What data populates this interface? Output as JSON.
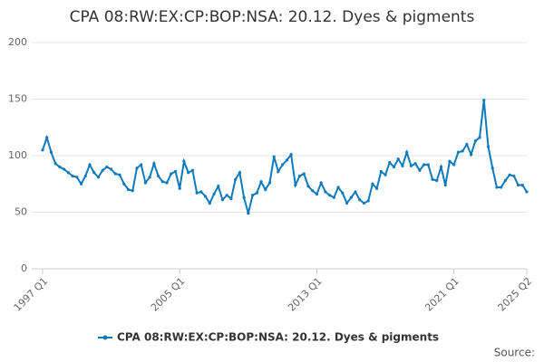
{
  "chart_data": {
    "type": "line",
    "title": "CPA 08:RW:EX:CP:BOP:NSA: 20.12. Dyes & pigments",
    "source_label": "Source:",
    "categories": [
      "1997 Q1",
      null,
      null,
      null,
      null,
      null,
      null,
      null,
      null,
      null,
      null,
      null,
      null,
      null,
      null,
      null,
      null,
      null,
      null,
      null,
      null,
      null,
      null,
      null,
      null,
      null,
      null,
      null,
      null,
      null,
      null,
      null,
      "2005 Q1",
      null,
      null,
      null,
      null,
      null,
      null,
      null,
      null,
      null,
      null,
      null,
      null,
      null,
      null,
      null,
      null,
      null,
      null,
      null,
      null,
      null,
      null,
      null,
      null,
      null,
      null,
      null,
      null,
      null,
      null,
      null,
      "2013 Q1",
      null,
      null,
      null,
      null,
      null,
      null,
      null,
      null,
      null,
      null,
      null,
      null,
      null,
      null,
      null,
      null,
      null,
      null,
      null,
      null,
      null,
      null,
      null,
      null,
      null,
      null,
      null,
      null,
      null,
      null,
      null,
      "2021 Q1",
      null,
      null,
      null,
      null,
      null,
      null,
      null,
      null,
      null,
      null,
      null,
      null,
      null,
      null,
      null,
      null,
      "2025 Q2"
    ],
    "series": [
      {
        "name": "CPA 08:RW:EX:CP:BOP:NSA: 20.12. Dyes & pigments",
        "color": "#0d7abc",
        "values": [
          105,
          116,
          103,
          93,
          90,
          88,
          85,
          82,
          81,
          75,
          82,
          92,
          85,
          81,
          87,
          90,
          88,
          84,
          83,
          75,
          70,
          69,
          89,
          92,
          76,
          81,
          93,
          82,
          77,
          76,
          84,
          86,
          71,
          95,
          85,
          87,
          67,
          68,
          64,
          58,
          66,
          73,
          61,
          65,
          62,
          79,
          85,
          63,
          49,
          65,
          67,
          77,
          70,
          76,
          99,
          86,
          92,
          96,
          101,
          74,
          82,
          84,
          73,
          69,
          66,
          76,
          68,
          65,
          63,
          72,
          67,
          58,
          63,
          68,
          61,
          58,
          60,
          75,
          71,
          86,
          83,
          94,
          90,
          97,
          91,
          103,
          91,
          93,
          87,
          92,
          92,
          79,
          78,
          90,
          74,
          95,
          92,
          103,
          104,
          110,
          101,
          113,
          116,
          149,
          108,
          89,
          72,
          72,
          78,
          83,
          82,
          74,
          74,
          68
        ]
      }
    ],
    "ylim": [
      0,
      200
    ],
    "yticks": [
      0,
      50,
      100,
      150,
      200
    ],
    "grid": true
  }
}
